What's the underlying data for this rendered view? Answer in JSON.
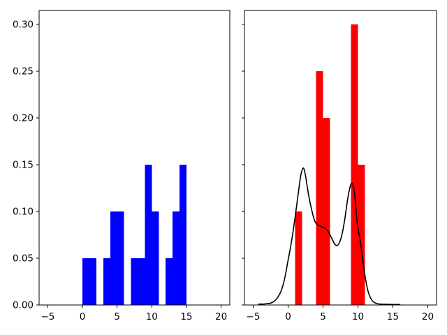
{
  "figure": {
    "background": "#ffffff",
    "frame_color": "#000000"
  },
  "chart_data": [
    {
      "type": "bar",
      "position": "left",
      "title": "",
      "xlabel": "",
      "ylabel": "",
      "bar_color": "#0000ff",
      "xlim": [
        -6.25,
        21.25
      ],
      "ylim": [
        0,
        0.315
      ],
      "grid": false,
      "legend": null,
      "xticks": [
        -5,
        0,
        5,
        10,
        15,
        20
      ],
      "xtick_labels": [
        "−5",
        "0",
        "5",
        "10",
        "15",
        "20"
      ],
      "yticks": [
        0,
        0.05,
        0.1,
        0.15,
        0.2,
        0.25,
        0.3
      ],
      "ytick_labels": [
        "0.00",
        "0.05",
        "0.10",
        "0.15",
        "0.20",
        "0.25",
        "0.30"
      ],
      "show_ytick_labels": true,
      "bin_width": 1,
      "bars": [
        {
          "x0": 0,
          "x1": 1,
          "height": 0.05
        },
        {
          "x0": 1,
          "x1": 2,
          "height": 0.05
        },
        {
          "x0": 3,
          "x1": 4,
          "height": 0.05
        },
        {
          "x0": 4,
          "x1": 5,
          "height": 0.1
        },
        {
          "x0": 5,
          "x1": 6,
          "height": 0.1
        },
        {
          "x0": 7,
          "x1": 8,
          "height": 0.05
        },
        {
          "x0": 8,
          "x1": 9,
          "height": 0.05
        },
        {
          "x0": 9,
          "x1": 10,
          "height": 0.15
        },
        {
          "x0": 10,
          "x1": 11,
          "height": 0.1
        },
        {
          "x0": 12,
          "x1": 13,
          "height": 0.05
        },
        {
          "x0": 13,
          "x1": 14,
          "height": 0.1
        },
        {
          "x0": 14,
          "x1": 15,
          "height": 0.15
        }
      ]
    },
    {
      "type": "bar+line",
      "position": "right",
      "title": "",
      "xlabel": "",
      "ylabel": "",
      "bar_color": "#ff0000",
      "line_color": "#000000",
      "xlim": [
        -6.25,
        21.25
      ],
      "ylim": [
        0,
        0.315
      ],
      "grid": false,
      "legend": null,
      "xticks": [
        -5,
        0,
        5,
        10,
        15,
        20
      ],
      "xtick_labels": [
        "−5",
        "0",
        "5",
        "10",
        "15",
        "20"
      ],
      "yticks": [
        0,
        0.05,
        0.1,
        0.15,
        0.2,
        0.25,
        0.3
      ],
      "ytick_labels": [],
      "show_ytick_labels": false,
      "bin_width": 1,
      "bars": [
        {
          "x0": 1,
          "x1": 2,
          "height": 0.1
        },
        {
          "x0": 4,
          "x1": 5,
          "height": 0.25
        },
        {
          "x0": 5,
          "x1": 6,
          "height": 0.2
        },
        {
          "x0": 9,
          "x1": 10,
          "height": 0.3
        },
        {
          "x0": 10,
          "x1": 11,
          "height": 0.15
        }
      ],
      "curve": {
        "name": "kde-density-curve",
        "line_width": 1.6,
        "points": [
          [
            -4.2,
            0.001
          ],
          [
            -3.5,
            0.001
          ],
          [
            -3.0,
            0.0015
          ],
          [
            -2.5,
            0.002
          ],
          [
            -2.0,
            0.004
          ],
          [
            -1.5,
            0.008
          ],
          [
            -1.0,
            0.015
          ],
          [
            -0.5,
            0.028
          ],
          [
            0.0,
            0.048
          ],
          [
            0.4,
            0.064
          ],
          [
            0.8,
            0.083
          ],
          [
            1.2,
            0.105
          ],
          [
            1.5,
            0.122
          ],
          [
            1.8,
            0.138
          ],
          [
            2.05,
            0.145
          ],
          [
            2.25,
            0.146
          ],
          [
            2.5,
            0.138
          ],
          [
            2.75,
            0.126
          ],
          [
            3.0,
            0.115
          ],
          [
            3.4,
            0.101
          ],
          [
            3.8,
            0.09
          ],
          [
            4.2,
            0.086
          ],
          [
            4.6,
            0.0845
          ],
          [
            5.0,
            0.083
          ],
          [
            5.4,
            0.0815
          ],
          [
            5.8,
            0.078
          ],
          [
            6.2,
            0.072
          ],
          [
            6.6,
            0.066
          ],
          [
            6.95,
            0.0635
          ],
          [
            7.3,
            0.066
          ],
          [
            7.7,
            0.075
          ],
          [
            8.1,
            0.091
          ],
          [
            8.5,
            0.112
          ],
          [
            8.8,
            0.124
          ],
          [
            9.05,
            0.13
          ],
          [
            9.35,
            0.127
          ],
          [
            9.6,
            0.113
          ],
          [
            9.8,
            0.095
          ],
          [
            10.0,
            0.082
          ],
          [
            10.3,
            0.07
          ],
          [
            10.6,
            0.053
          ],
          [
            11.0,
            0.032
          ],
          [
            11.4,
            0.016
          ],
          [
            11.8,
            0.0075
          ],
          [
            12.2,
            0.0035
          ],
          [
            12.7,
            0.0015
          ],
          [
            13.2,
            0.001
          ],
          [
            14.0,
            0.0008
          ],
          [
            15.0,
            0.0006
          ],
          [
            16.0,
            0.0005
          ]
        ]
      }
    }
  ]
}
